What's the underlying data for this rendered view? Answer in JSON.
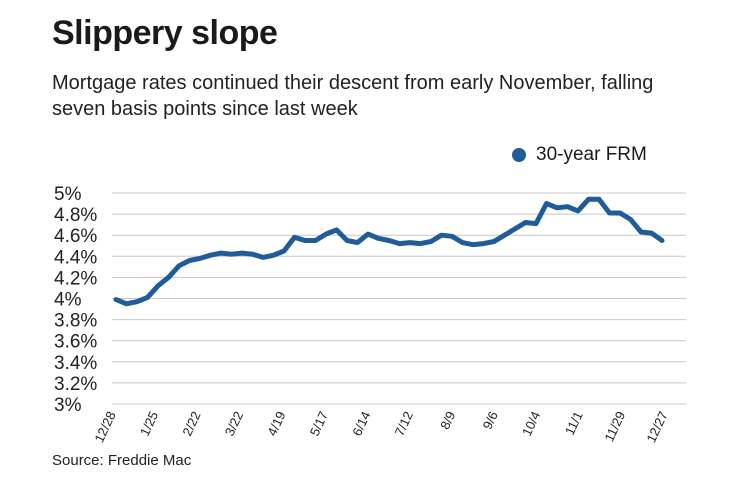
{
  "header": {
    "title": "Slippery slope",
    "subtitle": "Mortgage rates continued their descent from early November, falling seven basis points since last week"
  },
  "footer": {
    "source": "Source: Freddie Mac"
  },
  "colors": {
    "series": "#1f5c99",
    "grid": "#c8c8c8",
    "text": "#222222"
  },
  "chart_data": {
    "type": "line",
    "title": "Slippery slope",
    "subtitle": "Mortgage rates continued their descent from early November, falling seven basis points since last week",
    "legend": "top-right",
    "grid": true,
    "ylim": [
      3.0,
      5.0
    ],
    "y_ticks": [
      "5%",
      "4.8%",
      "4.6%",
      "4.4%",
      "4.2%",
      "4%",
      "3.8%",
      "3.6%",
      "3.4%",
      "3.2%",
      "3%"
    ],
    "x_ticks": [
      "12/28",
      "1/25",
      "2/22",
      "3/22",
      "4/19",
      "5/17",
      "6/14",
      "7/12",
      "8/9",
      "9/6",
      "10/4",
      "11/1",
      "11/29",
      "12/27"
    ],
    "series": [
      {
        "name": "30-year FRM",
        "values": [
          3.99,
          3.95,
          3.97,
          4.01,
          4.12,
          4.2,
          4.31,
          4.36,
          4.38,
          4.41,
          4.43,
          4.42,
          4.43,
          4.42,
          4.39,
          4.41,
          4.45,
          4.58,
          4.55,
          4.55,
          4.61,
          4.65,
          4.55,
          4.53,
          4.61,
          4.57,
          4.55,
          4.52,
          4.53,
          4.52,
          4.54,
          4.6,
          4.59,
          4.53,
          4.51,
          4.52,
          4.54,
          4.6,
          4.66,
          4.72,
          4.71,
          4.9,
          4.86,
          4.87,
          4.83,
          4.94,
          4.94,
          4.81,
          4.81,
          4.75,
          4.63,
          4.62,
          4.55
        ]
      }
    ]
  }
}
